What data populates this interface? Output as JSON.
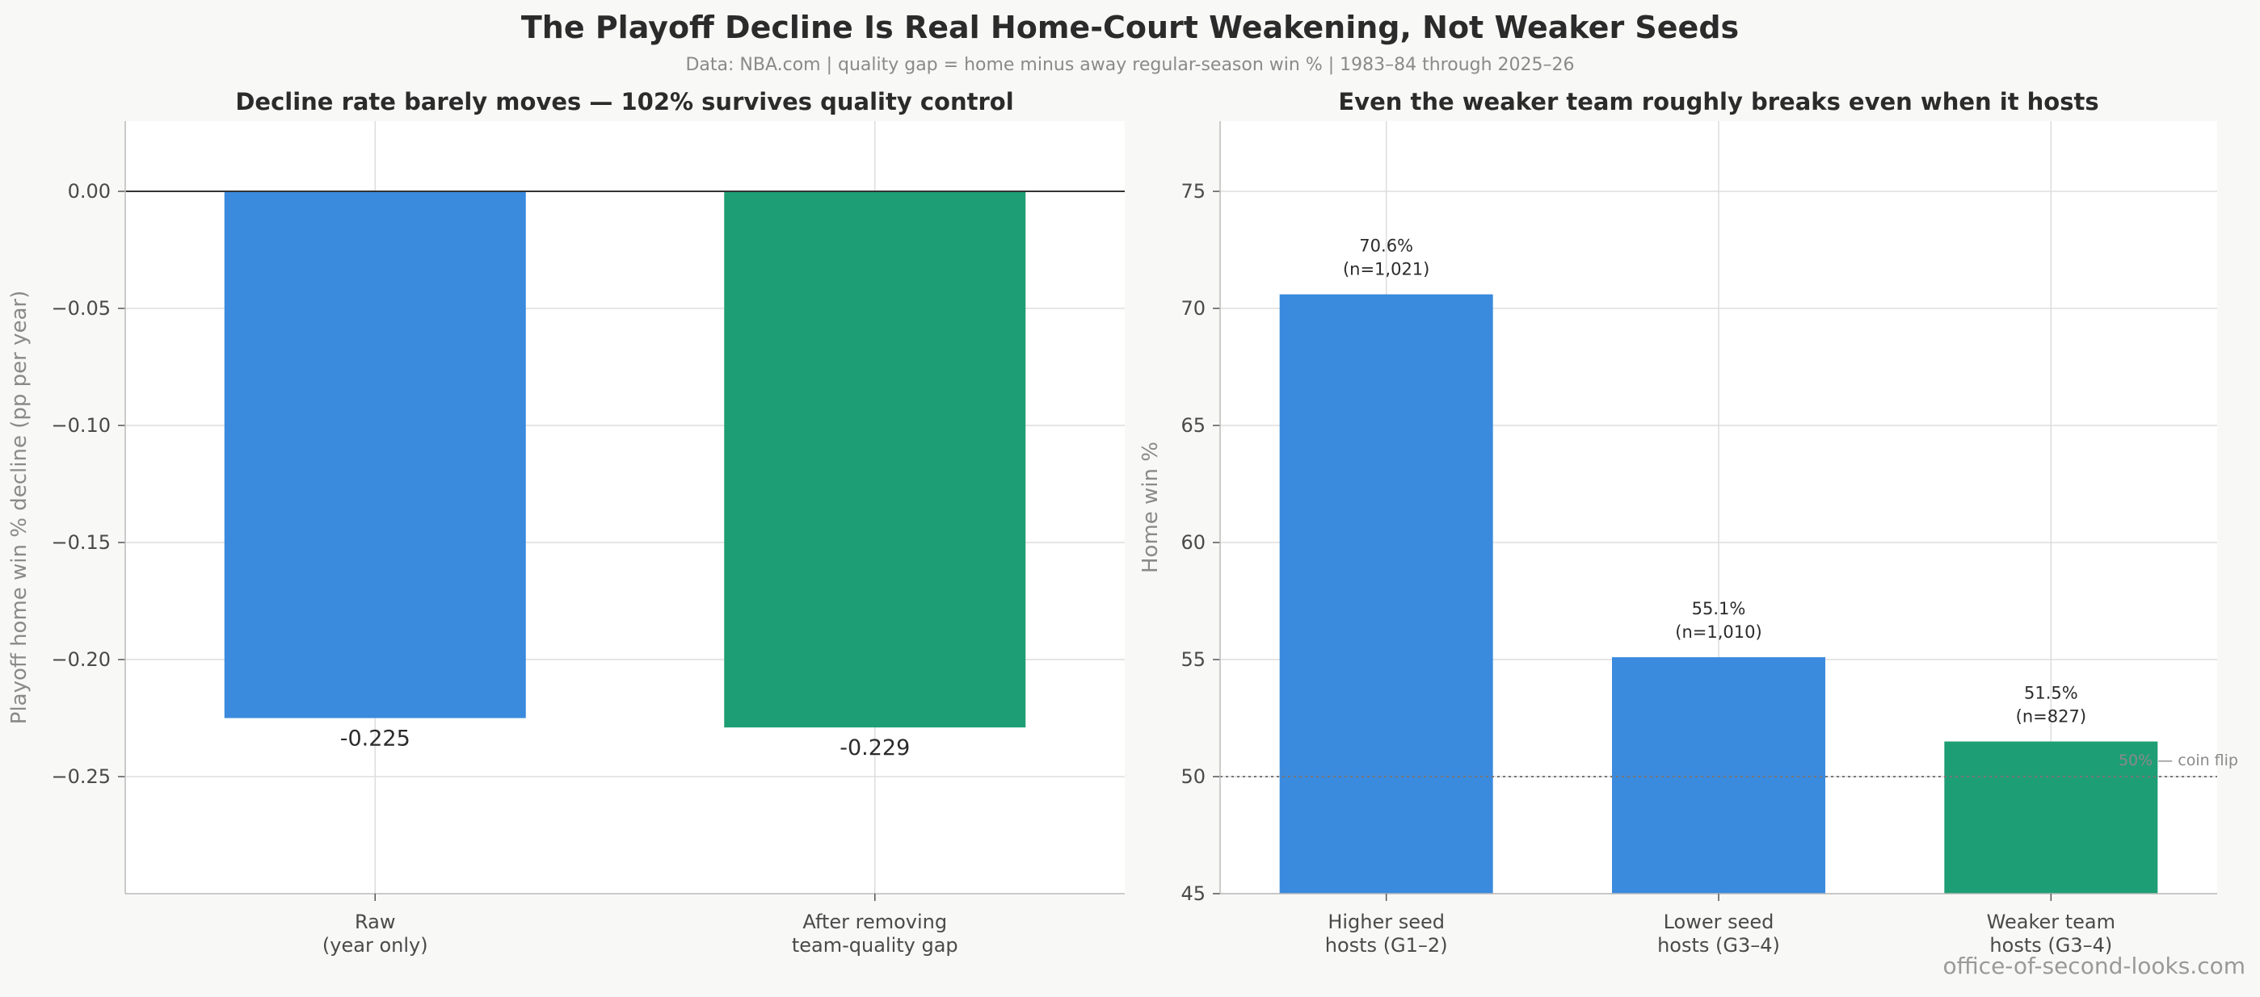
{
  "title": "The Playoff Decline Is Real Home-Court Weakening, Not Weaker Seeds",
  "subtitle": "Data: NBA.com  |  quality gap = home minus away regular-season win %  |  1983–84 through 2025–26",
  "watermark": "office-of-second-looks.com",
  "colors": {
    "blue": "#3a8ade",
    "green": "#1e9e74",
    "axis_text": "#4a4a4a",
    "grid": "#dddddd"
  },
  "chart_data": [
    {
      "type": "bar",
      "title": "Decline rate barely moves — 102% survives quality control",
      "ylabel": "Playoff home win % decline (pp per year)",
      "xlabel": "",
      "categories": [
        [
          "Raw",
          "(year only)"
        ],
        [
          "After removing",
          "team-quality gap"
        ]
      ],
      "values": [
        -0.225,
        -0.229
      ],
      "value_labels": [
        "-0.225",
        "-0.229"
      ],
      "bar_colors": [
        "#3a8ade",
        "#1e9e74"
      ],
      "ylim": [
        -0.3,
        0.03
      ],
      "yticks": [
        0.0,
        -0.05,
        -0.1,
        -0.15,
        -0.2,
        -0.25
      ],
      "ytick_labels": [
        "0.00",
        "−0.05",
        "−0.10",
        "−0.15",
        "−0.20",
        "−0.25"
      ],
      "zero_line": true,
      "grid": true
    },
    {
      "type": "bar",
      "title": "Even the weaker team roughly breaks even when it hosts",
      "ylabel": "Home win %",
      "xlabel": "",
      "categories": [
        [
          "Higher seed",
          "hosts (G1–2)"
        ],
        [
          "Lower seed",
          "hosts (G3–4)"
        ],
        [
          "Weaker team",
          "hosts (G3–4)"
        ]
      ],
      "values": [
        70.6,
        55.1,
        51.5
      ],
      "value_labels": [
        [
          "70.6%",
          "(n=1,021)"
        ],
        [
          "55.1%",
          "(n=1,010)"
        ],
        [
          "51.5%",
          "(n=827)"
        ]
      ],
      "bar_colors": [
        "#3a8ade",
        "#3a8ade",
        "#1e9e74"
      ],
      "ylim": [
        45,
        78
      ],
      "yticks": [
        45,
        50,
        55,
        60,
        65,
        70,
        75
      ],
      "ytick_labels": [
        "45",
        "50",
        "55",
        "60",
        "65",
        "70",
        "75"
      ],
      "reference_line": {
        "value": 50,
        "label": "50% — coin flip"
      },
      "grid": true
    }
  ]
}
